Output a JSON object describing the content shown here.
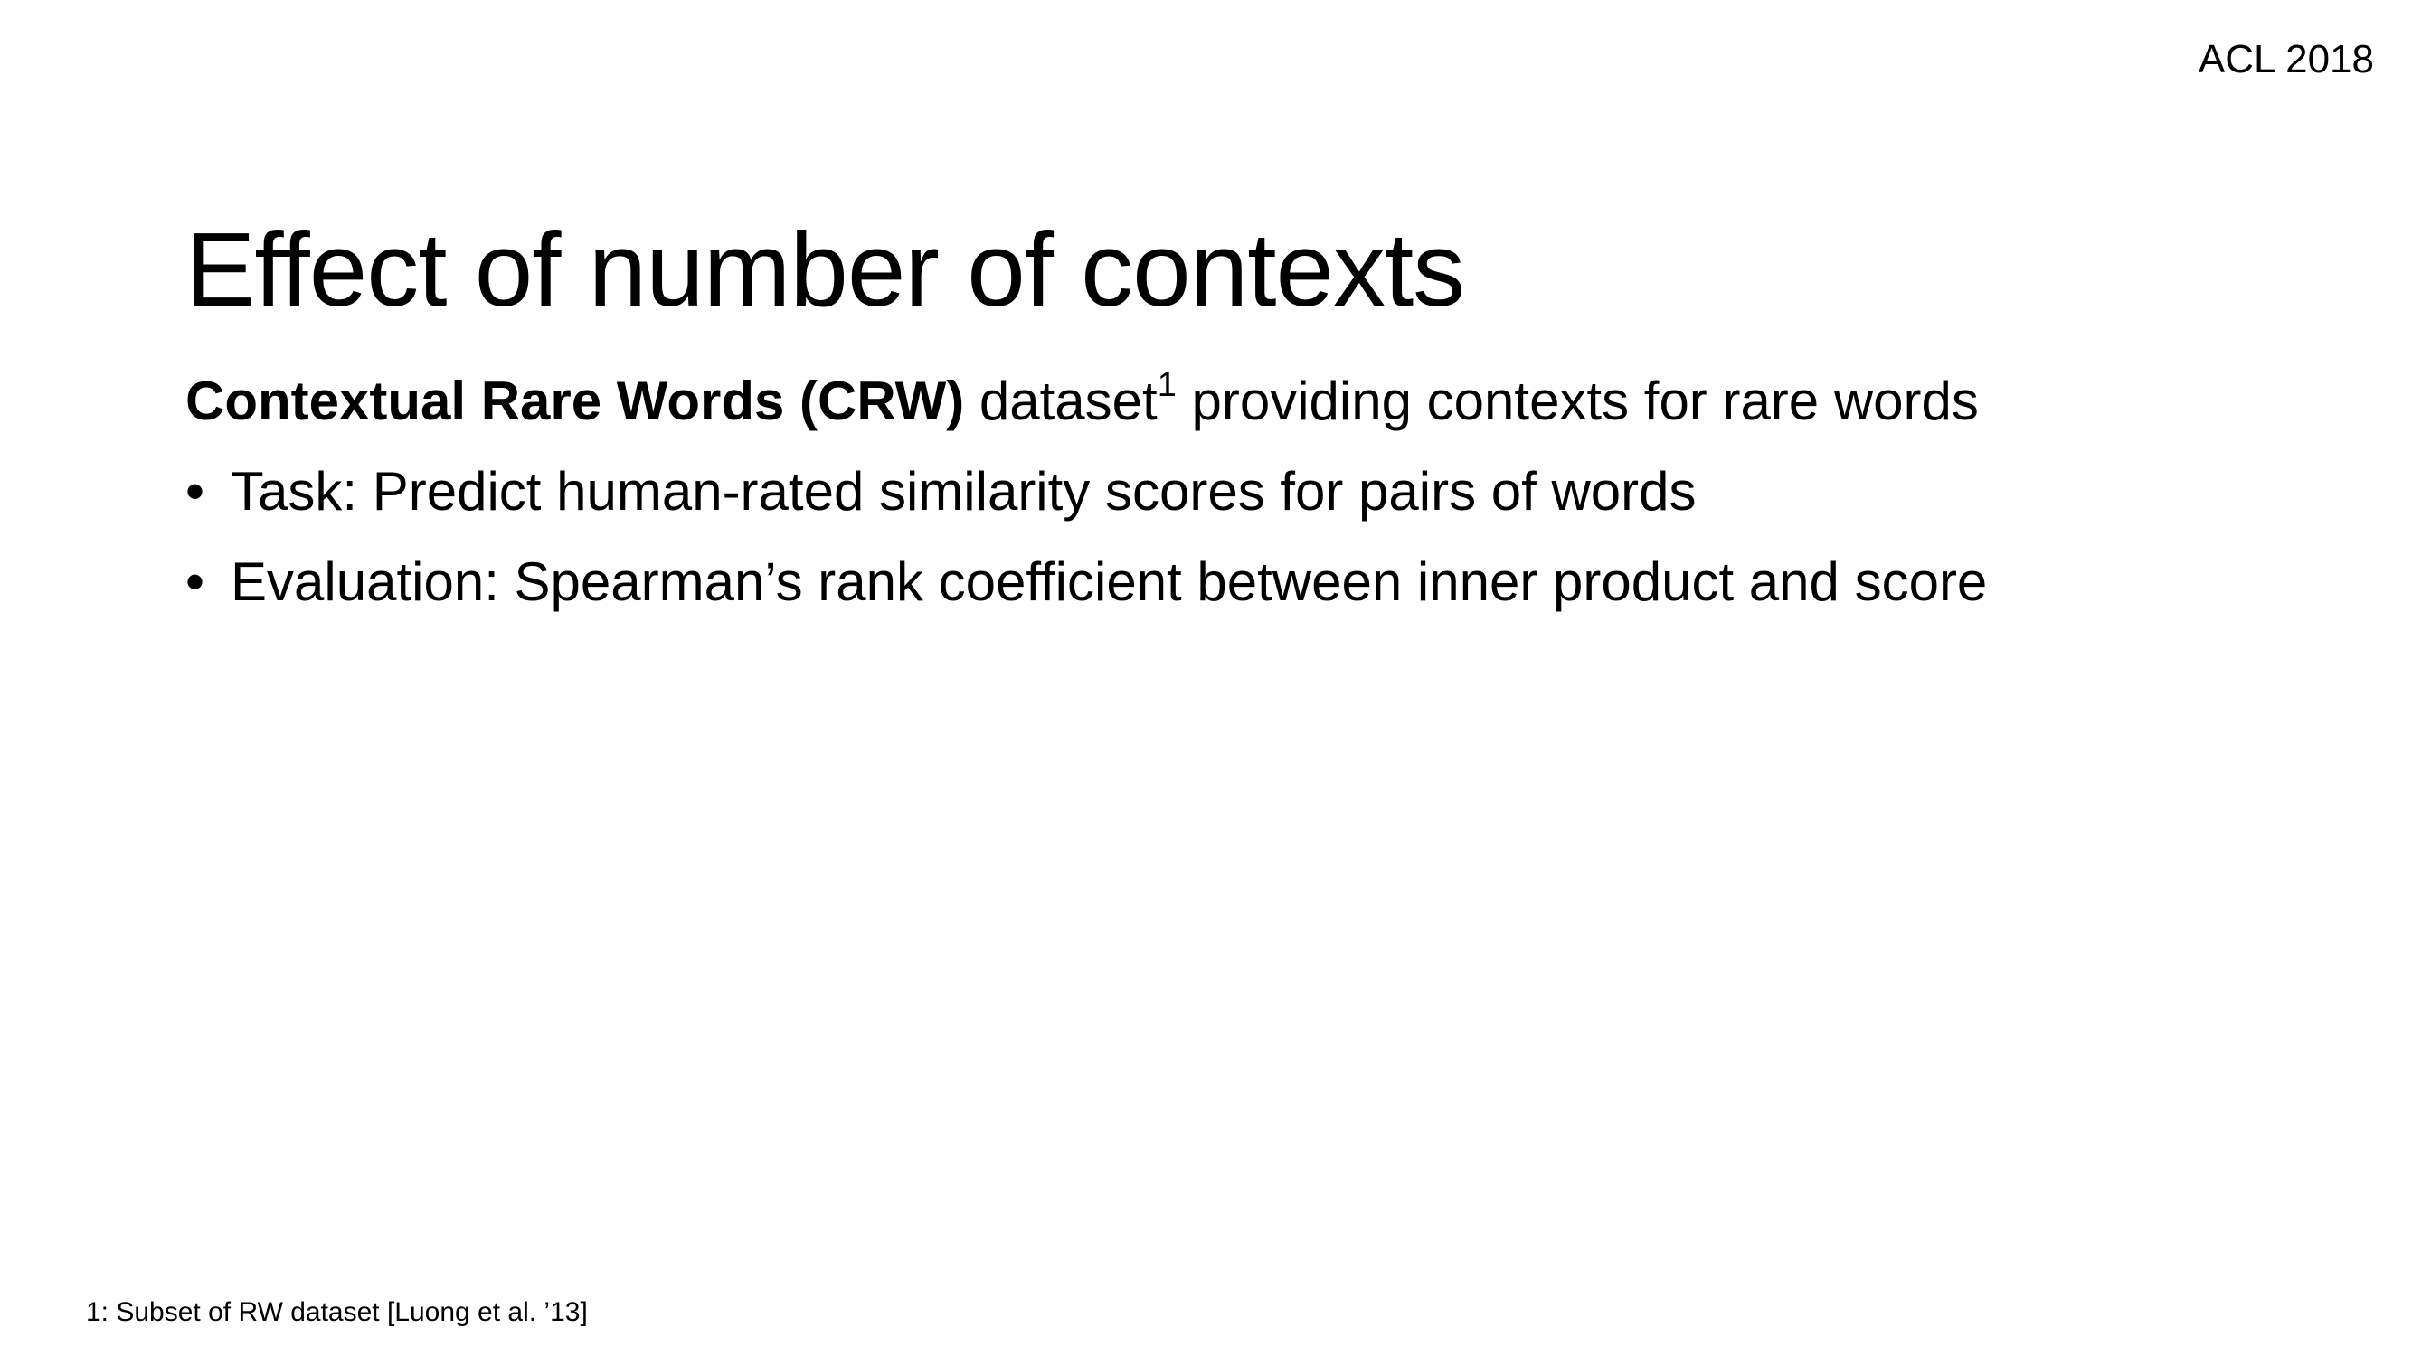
{
  "header": {
    "venue": "ACL 2018"
  },
  "slide": {
    "title": "Effect of number of contexts",
    "lead": {
      "bold": "Contextual Rare Words (CRW)",
      "text_before_sup": " dataset",
      "sup": "1",
      "text_after_sup": " providing contexts for rare words"
    },
    "bullet_symbol": "•",
    "bullets": [
      {
        "label": "Task: Predict human-rated similarity scores for pairs of words"
      },
      {
        "label": "Evaluation: Spearman’s rank coefficient between inner product and score"
      }
    ]
  },
  "footnote": {
    "text": "1: Subset of RW dataset [Luong et al. ’13]"
  }
}
